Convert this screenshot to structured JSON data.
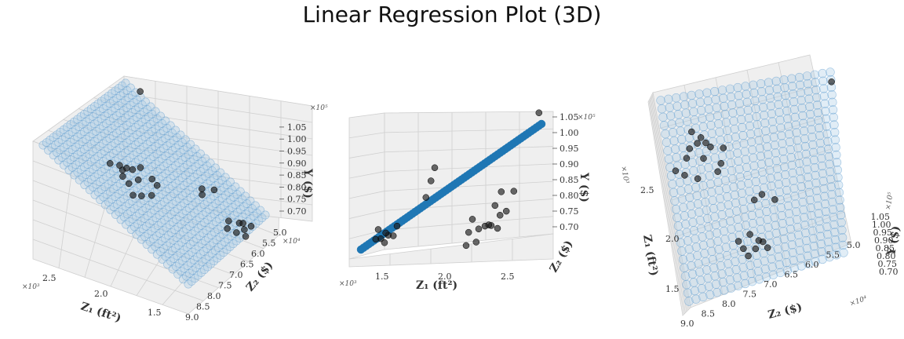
{
  "figure": {
    "title": "Linear Regression Plot (3D)"
  },
  "colors": {
    "plane": "#a9cbe6",
    "plane_edge": "#5b9bd0",
    "line": "#1f77b4",
    "points": "#1a1a1a",
    "pane": "#efefef",
    "grid": "#d0d0d0"
  },
  "chart_data": [
    {
      "type": "scatter",
      "view": "oblique",
      "title": "",
      "xlabel": "Z₁ (ft²)",
      "ylabel": "Z₂ ($)",
      "zlabel": "Y ($)",
      "x_multiplier": "×10³",
      "y_multiplier": "×10⁴",
      "z_multiplier": "×10⁵",
      "x_ticks": [
        "1.5",
        "2.0",
        "2.5"
      ],
      "y_ticks": [
        "5.0",
        "5.5",
        "6.0",
        "6.5",
        "7.0",
        "7.5",
        "8.0",
        "8.5",
        "9.0"
      ],
      "z_ticks": [
        "0.70",
        "0.75",
        "0.80",
        "0.85",
        "0.90",
        "0.95",
        "1.00",
        "1.05"
      ],
      "xlim": [
        1.2,
        2.8
      ],
      "ylim": [
        5.0,
        9.0
      ],
      "zlim": [
        0.65,
        1.05
      ],
      "grid": true
    },
    {
      "type": "scatter",
      "view": "edge-on",
      "title": "",
      "xlabel": "Z₁ (ft²)",
      "ylabel": "Z₂ ($)",
      "zlabel": "Y ($)",
      "x_multiplier": "×10³",
      "z_multiplier": "×10⁵",
      "x_ticks": [
        "1.5",
        "2.0",
        "2.5"
      ],
      "z_ticks": [
        "0.70",
        "0.75",
        "0.80",
        "0.85",
        "0.90",
        "0.95",
        "1.00",
        "1.05"
      ],
      "xlim": [
        1.2,
        2.8
      ],
      "zlim": [
        0.65,
        1.05
      ],
      "grid": true
    },
    {
      "type": "scatter",
      "view": "top-down",
      "title": "",
      "xlabel": "Z₁ (ft²)",
      "ylabel": "Z₂ ($)",
      "zlabel": "Y ($)",
      "x_multiplier": "×10³",
      "y_multiplier": "×10⁴",
      "z_multiplier": "×10⁵",
      "x_ticks": [
        "1.5",
        "2.0",
        "2.5"
      ],
      "y_ticks": [
        "5.0",
        "5.5",
        "6.0",
        "6.5",
        "7.0",
        "7.5",
        "8.0",
        "8.5",
        "9.0"
      ],
      "z_ticks": [
        "0.70",
        "0.75",
        "0.80",
        "0.85",
        "0.90",
        "0.95",
        "1.00",
        "1.05"
      ],
      "xlim": [
        1.2,
        2.8
      ],
      "ylim": [
        5.0,
        9.0
      ],
      "zlim": [
        0.65,
        1.05
      ],
      "grid": true
    }
  ],
  "observations": {
    "z1": [
      2.68,
      2.48,
      2.42,
      2.38,
      2.37,
      2.35,
      2.33,
      2.3,
      2.28,
      2.25,
      2.2,
      2.18,
      2.15,
      2.12,
      2.1,
      1.85,
      1.82,
      1.78,
      1.55,
      1.52,
      1.48,
      1.46,
      1.45,
      1.42,
      1.4,
      1.38
    ],
    "z2": [
      4.9,
      8.3,
      8.1,
      8.2,
      8.0,
      8.4,
      7.9,
      7.6,
      8.5,
      8.1,
      8.8,
      7.7,
      8.6,
      7.8,
      8.3,
      6.8,
      7.0,
      6.5,
      7.2,
      7.5,
      7.0,
      6.9,
      7.4,
      7.1,
      6.8,
      7.3
    ],
    "y": [
      1.03,
      0.82,
      0.78,
      0.8,
      0.75,
      0.73,
      0.76,
      0.72,
      0.74,
      0.7,
      0.71,
      0.69,
      0.72,
      0.7,
      0.68,
      0.87,
      0.85,
      0.82,
      0.7,
      0.69,
      0.71,
      0.68,
      0.67,
      0.7,
      0.69,
      0.68
    ]
  },
  "plane": {
    "intercept": 0.12,
    "coef_z1": 0.32,
    "coef_z2": -0.005
  }
}
